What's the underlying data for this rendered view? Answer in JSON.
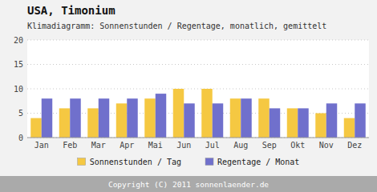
{
  "chart_data": {
    "type": "bar",
    "title": "USA,  Timonium",
    "subtitle": "Klimadiagramm: Sonnenstunden / Regentage, monatlich, gemittelt",
    "categories": [
      "Jan",
      "Feb",
      "Mar",
      "Apr",
      "Mai",
      "Jun",
      "Jul",
      "Aug",
      "Sep",
      "Okt",
      "Nov",
      "Dez"
    ],
    "series": [
      {
        "name": "Sonnenstunden / Tag",
        "color": "#F5C842",
        "values": [
          4,
          6,
          6,
          7,
          8,
          10,
          10,
          8,
          8,
          6,
          5,
          4
        ]
      },
      {
        "name": "Regentage / Monat",
        "color": "#7070CC",
        "values": [
          8,
          8,
          8,
          8,
          9,
          7,
          7,
          8,
          6,
          6,
          7,
          7
        ]
      }
    ],
    "ylim": [
      0,
      20
    ],
    "yticks": [
      0,
      5,
      10,
      15,
      20
    ],
    "grid": true,
    "legend": "bottom",
    "annotations": [
      "Copyright (C) 2011 sonnenlaender.de"
    ]
  }
}
